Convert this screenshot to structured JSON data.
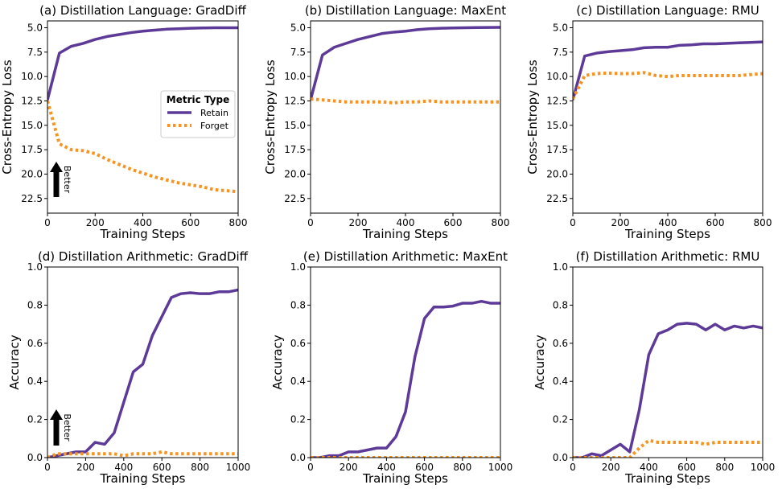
{
  "colors": {
    "retain": "#5e3a98",
    "forget": "#f7931e"
  },
  "legend": {
    "title": "Metric Type",
    "entries": [
      {
        "name": "Retain",
        "color": "#5e3a98",
        "style": "solid"
      },
      {
        "name": "Forget",
        "color": "#f7931e",
        "style": "dotted"
      }
    ]
  },
  "better_label": "Better",
  "chart_data": [
    {
      "type": "line",
      "title": "(a) Distillation Language: GradDiff",
      "xlabel": "Training Steps",
      "ylabel": "Cross-Entropy Loss",
      "xlim": [
        0,
        800
      ],
      "ylim": [
        24,
        4.3
      ],
      "y_inverted": true,
      "xticks": [
        0,
        200,
        400,
        600,
        800
      ],
      "xtick_labels": [
        "0",
        "200",
        "400",
        "600",
        "800"
      ],
      "yticks": [
        5,
        7.5,
        10,
        12.5,
        15,
        17.5,
        20,
        22.5
      ],
      "ytick_labels": [
        "5.0",
        "7.5",
        "10.0",
        "12.5",
        "15.0",
        "17.5",
        "20.0",
        "22.5"
      ],
      "grid": false,
      "legend_position": "center-right",
      "better_arrow": "up",
      "x": [
        0,
        50,
        100,
        150,
        200,
        250,
        300,
        350,
        400,
        450,
        500,
        550,
        600,
        650,
        700,
        750,
        800
      ],
      "series": [
        {
          "name": "Retain",
          "values": [
            12.4,
            7.6,
            6.9,
            6.6,
            6.2,
            5.9,
            5.7,
            5.5,
            5.35,
            5.25,
            5.15,
            5.1,
            5.05,
            5.02,
            5.0,
            5.0,
            5.0
          ]
        },
        {
          "name": "Forget",
          "values": [
            12.5,
            16.9,
            17.5,
            17.6,
            17.9,
            18.5,
            19.0,
            19.5,
            19.9,
            20.3,
            20.6,
            20.9,
            21.1,
            21.3,
            21.6,
            21.7,
            21.8
          ]
        }
      ]
    },
    {
      "type": "line",
      "title": "(b) Distillation Language: MaxEnt",
      "xlabel": "Training Steps",
      "ylabel": "Cross-Entropy Loss",
      "xlim": [
        0,
        800
      ],
      "ylim": [
        24,
        4.3
      ],
      "y_inverted": true,
      "xticks": [
        0,
        200,
        400,
        600,
        800
      ],
      "xtick_labels": [
        "0",
        "200",
        "400",
        "600",
        "800"
      ],
      "yticks": [
        5,
        7.5,
        10,
        12.5,
        15,
        17.5,
        20,
        22.5
      ],
      "ytick_labels": [
        "5.0",
        "7.5",
        "10.0",
        "12.5",
        "15.0",
        "17.5",
        "20.0",
        "22.5"
      ],
      "grid": false,
      "x": [
        0,
        50,
        100,
        150,
        200,
        250,
        300,
        350,
        400,
        450,
        500,
        550,
        600,
        650,
        700,
        750,
        800
      ],
      "series": [
        {
          "name": "Retain",
          "values": [
            12.4,
            7.8,
            7.0,
            6.6,
            6.2,
            5.9,
            5.6,
            5.45,
            5.35,
            5.2,
            5.1,
            5.05,
            5.02,
            5.0,
            4.98,
            4.97,
            4.96
          ]
        },
        {
          "name": "Forget",
          "values": [
            12.3,
            12.4,
            12.5,
            12.6,
            12.6,
            12.6,
            12.6,
            12.7,
            12.6,
            12.6,
            12.5,
            12.6,
            12.6,
            12.6,
            12.6,
            12.6,
            12.6
          ]
        }
      ]
    },
    {
      "type": "line",
      "title": "(c) Distillation Language: RMU",
      "xlabel": "Training Steps",
      "ylabel": "Cross-Entropy Loss",
      "xlim": [
        0,
        800
      ],
      "ylim": [
        24,
        4.3
      ],
      "y_inverted": true,
      "xticks": [
        0,
        200,
        400,
        600,
        800
      ],
      "xtick_labels": [
        "0",
        "200",
        "400",
        "600",
        "800"
      ],
      "yticks": [
        5,
        7.5,
        10,
        12.5,
        15,
        17.5,
        20,
        22.5
      ],
      "ytick_labels": [
        "5.0",
        "7.5",
        "10.0",
        "12.5",
        "15.0",
        "17.5",
        "20.0",
        "22.5"
      ],
      "grid": false,
      "x": [
        0,
        50,
        100,
        150,
        200,
        250,
        300,
        350,
        400,
        450,
        500,
        550,
        600,
        650,
        700,
        750,
        800
      ],
      "series": [
        {
          "name": "Retain",
          "values": [
            12.4,
            7.9,
            7.6,
            7.45,
            7.35,
            7.25,
            7.05,
            7.0,
            7.0,
            6.8,
            6.75,
            6.65,
            6.65,
            6.6,
            6.55,
            6.5,
            6.45
          ]
        },
        {
          "name": "Forget",
          "values": [
            12.3,
            9.9,
            9.7,
            9.65,
            9.7,
            9.7,
            9.6,
            9.9,
            10.0,
            9.9,
            9.9,
            9.9,
            9.9,
            9.9,
            9.9,
            9.8,
            9.7
          ]
        }
      ]
    },
    {
      "type": "line",
      "title": "(d) Distillation Arithmetic: GradDiff",
      "xlabel": "Training Steps",
      "ylabel": "Accuracy",
      "xlim": [
        0,
        1000
      ],
      "ylim": [
        0,
        1
      ],
      "xticks": [
        0,
        200,
        400,
        600,
        800,
        1000
      ],
      "xtick_labels": [
        "0",
        "200",
        "400",
        "600",
        "800",
        "1000"
      ],
      "yticks": [
        0,
        0.2,
        0.4,
        0.6,
        0.8,
        1.0
      ],
      "ytick_labels": [
        "0.0",
        "0.2",
        "0.4",
        "0.6",
        "0.8",
        "1.0"
      ],
      "grid": false,
      "better_arrow": "up",
      "x": [
        0,
        50,
        100,
        150,
        200,
        250,
        300,
        350,
        400,
        450,
        500,
        550,
        600,
        650,
        700,
        750,
        800,
        850,
        900,
        950,
        1000
      ],
      "series": [
        {
          "name": "Retain",
          "values": [
            0.0,
            0.01,
            0.02,
            0.03,
            0.03,
            0.08,
            0.07,
            0.13,
            0.29,
            0.45,
            0.49,
            0.64,
            0.74,
            0.84,
            0.86,
            0.865,
            0.86,
            0.86,
            0.87,
            0.87,
            0.88
          ]
        },
        {
          "name": "Forget",
          "values": [
            0.0,
            0.02,
            0.02,
            0.02,
            0.02,
            0.02,
            0.02,
            0.02,
            0.01,
            0.02,
            0.02,
            0.02,
            0.03,
            0.02,
            0.02,
            0.02,
            0.02,
            0.02,
            0.02,
            0.02,
            0.02
          ]
        }
      ]
    },
    {
      "type": "line",
      "title": "(e) Distillation Arithmetic: MaxEnt",
      "xlabel": "Training Steps",
      "ylabel": "Accuracy",
      "xlim": [
        0,
        1000
      ],
      "ylim": [
        0,
        1
      ],
      "xticks": [
        0,
        200,
        400,
        600,
        800,
        1000
      ],
      "xtick_labels": [
        "0",
        "200",
        "400",
        "600",
        "800",
        "1000"
      ],
      "yticks": [
        0,
        0.2,
        0.4,
        0.6,
        0.8,
        1.0
      ],
      "ytick_labels": [
        "0.0",
        "0.2",
        "0.4",
        "0.6",
        "0.8",
        "1.0"
      ],
      "grid": false,
      "x": [
        0,
        50,
        100,
        150,
        200,
        250,
        300,
        350,
        400,
        450,
        500,
        550,
        600,
        650,
        700,
        750,
        800,
        850,
        900,
        950,
        1000
      ],
      "series": [
        {
          "name": "Retain",
          "values": [
            0.0,
            0.0,
            0.01,
            0.01,
            0.03,
            0.03,
            0.04,
            0.05,
            0.05,
            0.11,
            0.24,
            0.53,
            0.73,
            0.79,
            0.79,
            0.795,
            0.81,
            0.81,
            0.82,
            0.81,
            0.81
          ]
        },
        {
          "name": "Forget",
          "values": [
            0.0,
            0.0,
            0.0,
            0.0,
            0.0,
            0.0,
            0.0,
            0.0,
            0.0,
            0.0,
            0.0,
            0.0,
            0.0,
            0.0,
            0.0,
            0.0,
            0.0,
            0.0,
            0.0,
            0.0,
            0.0
          ]
        }
      ]
    },
    {
      "type": "line",
      "title": "(f) Distillation Arithmetic: RMU",
      "xlabel": "Training Steps",
      "ylabel": "Accuracy",
      "xlim": [
        0,
        1000
      ],
      "ylim": [
        0,
        1
      ],
      "xticks": [
        0,
        200,
        400,
        600,
        800,
        1000
      ],
      "xtick_labels": [
        "0",
        "200",
        "400",
        "600",
        "800",
        "1000"
      ],
      "yticks": [
        0,
        0.2,
        0.4,
        0.6,
        0.8,
        1.0
      ],
      "ytick_labels": [
        "0.0",
        "0.2",
        "0.4",
        "0.6",
        "0.8",
        "1.0"
      ],
      "grid": false,
      "x": [
        0,
        50,
        100,
        150,
        200,
        250,
        300,
        350,
        400,
        450,
        500,
        550,
        600,
        650,
        700,
        750,
        800,
        850,
        900,
        950,
        1000
      ],
      "series": [
        {
          "name": "Retain",
          "values": [
            0.0,
            0.0,
            0.02,
            0.01,
            0.04,
            0.07,
            0.03,
            0.25,
            0.54,
            0.65,
            0.67,
            0.7,
            0.705,
            0.7,
            0.67,
            0.7,
            0.67,
            0.69,
            0.68,
            0.69,
            0.68
          ]
        },
        {
          "name": "Forget",
          "values": [
            0.0,
            0.0,
            0.0,
            0.0,
            0.0,
            0.0,
            0.0,
            0.05,
            0.09,
            0.08,
            0.08,
            0.08,
            0.08,
            0.08,
            0.07,
            0.08,
            0.08,
            0.08,
            0.08,
            0.08,
            0.08
          ]
        }
      ]
    }
  ]
}
